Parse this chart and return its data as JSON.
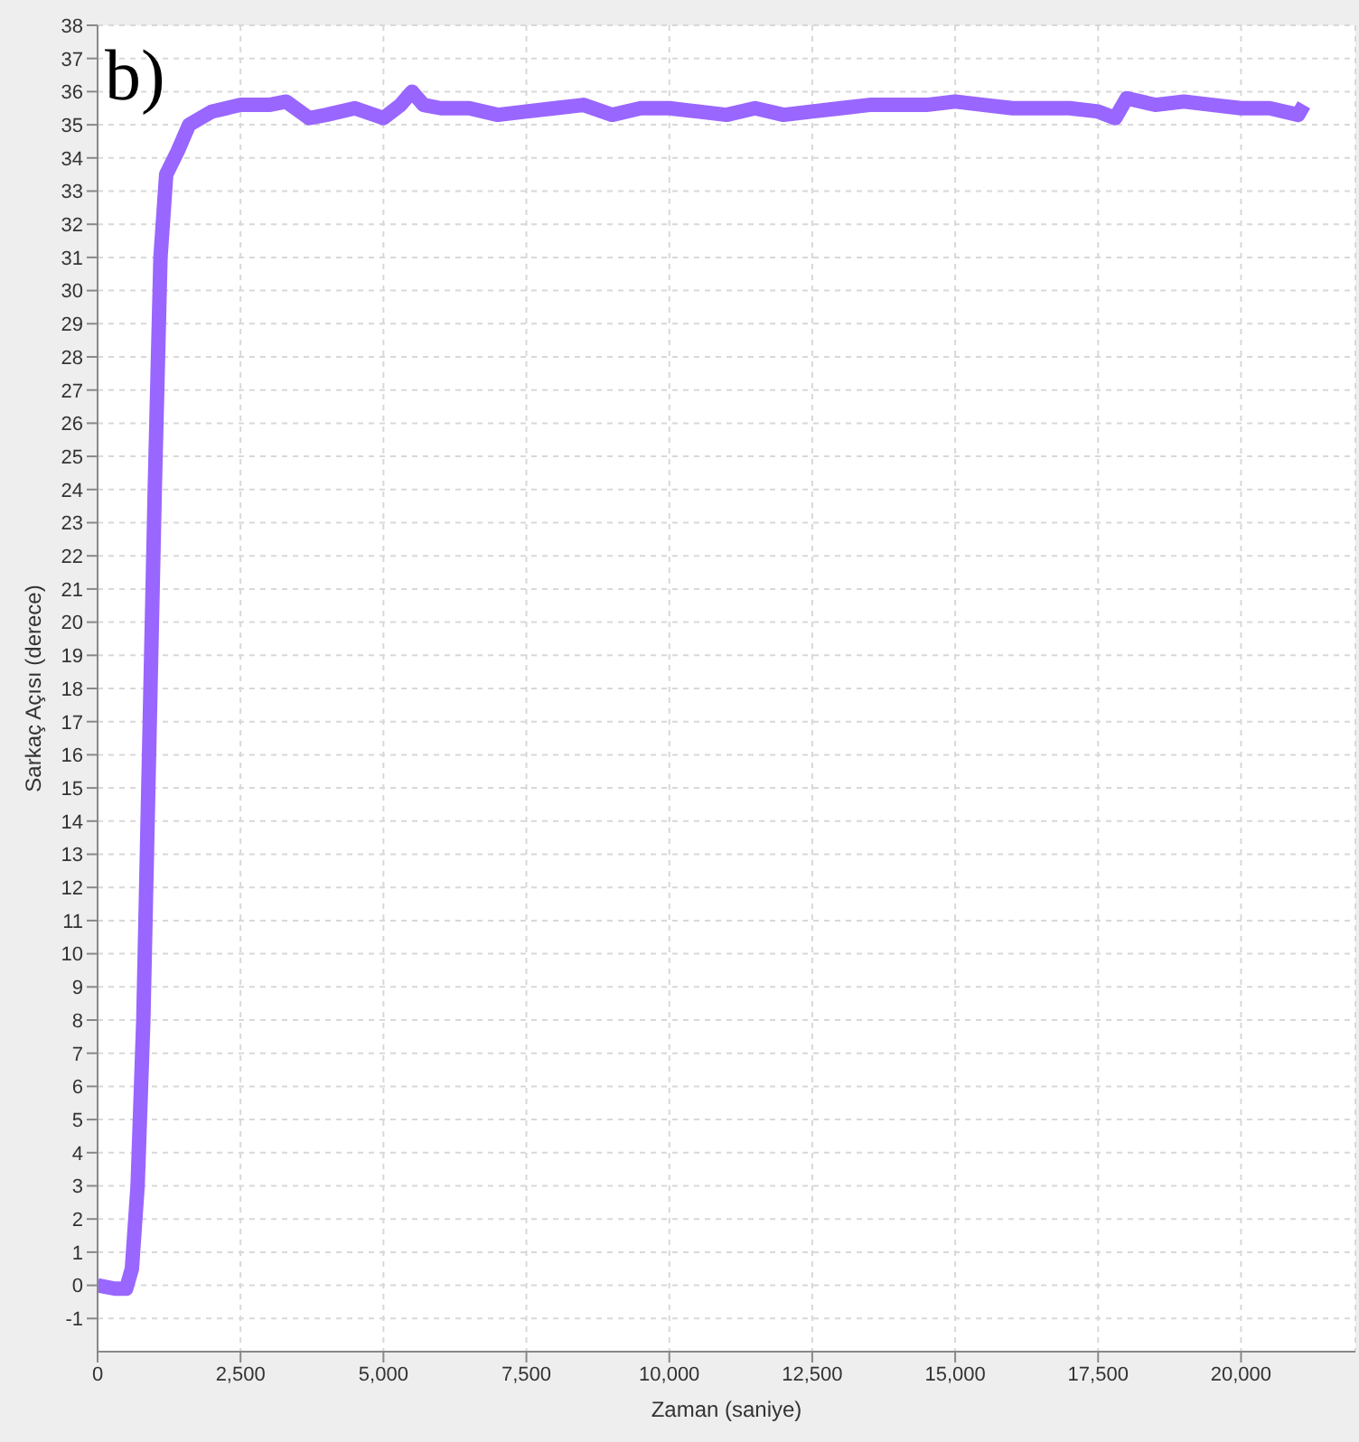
{
  "chart_data": {
    "type": "line",
    "xlabel": "Zaman (saniye)",
    "ylabel": "Sarkaç Açısı (derece)",
    "annotations": [
      "b)"
    ],
    "xlim": [
      0,
      22000
    ],
    "xticks": [
      {
        "value": 0,
        "label": "0"
      },
      {
        "value": 2500,
        "label": "2,500"
      },
      {
        "value": 5000,
        "label": "5,000"
      },
      {
        "value": 7500,
        "label": "7,500"
      },
      {
        "value": 10000,
        "label": "10,000"
      },
      {
        "value": 12500,
        "label": "12,500"
      },
      {
        "value": 15000,
        "label": "15,000"
      },
      {
        "value": 17500,
        "label": "17,500"
      },
      {
        "value": 20000,
        "label": "20,000"
      }
    ],
    "ylim": [
      -2,
      38
    ],
    "yticks": [
      -1,
      0,
      1,
      2,
      3,
      4,
      5,
      6,
      7,
      8,
      9,
      10,
      11,
      12,
      13,
      14,
      15,
      16,
      17,
      18,
      19,
      20,
      21,
      22,
      23,
      24,
      25,
      26,
      27,
      28,
      29,
      30,
      31,
      32,
      33,
      34,
      35,
      36,
      37,
      38
    ],
    "grid": true,
    "marker": "none",
    "series": [
      {
        "color": "#9966ff",
        "x": [
          0,
          300,
          500,
          600,
          700,
          800,
          900,
          1000,
          1100,
          1200,
          1400,
          1600,
          2000,
          2500,
          3000,
          3300,
          3700,
          4000,
          4500,
          5000,
          5300,
          5500,
          5700,
          6000,
          6500,
          7000,
          7500,
          8000,
          8500,
          9000,
          9500,
          10000,
          10500,
          11000,
          11500,
          12000,
          12500,
          13000,
          13500,
          14000,
          14500,
          15000,
          15500,
          16000,
          16500,
          17000,
          17500,
          17800,
          18000,
          18500,
          19000,
          19500,
          20000,
          20500,
          21000,
          21100
        ],
        "values": [
          0,
          -0.1,
          -0.1,
          0.5,
          3,
          8,
          16,
          24,
          31,
          33.5,
          34.2,
          35,
          35.4,
          35.6,
          35.6,
          35.7,
          35.2,
          35.3,
          35.5,
          35.2,
          35.6,
          36,
          35.6,
          35.5,
          35.5,
          35.3,
          35.4,
          35.5,
          35.6,
          35.3,
          35.5,
          35.5,
          35.4,
          35.3,
          35.5,
          35.3,
          35.4,
          35.5,
          35.6,
          35.6,
          35.6,
          35.7,
          35.6,
          35.5,
          35.5,
          35.5,
          35.4,
          35.2,
          35.8,
          35.6,
          35.7,
          35.6,
          35.5,
          35.5,
          35.3,
          35.6
        ]
      }
    ]
  }
}
